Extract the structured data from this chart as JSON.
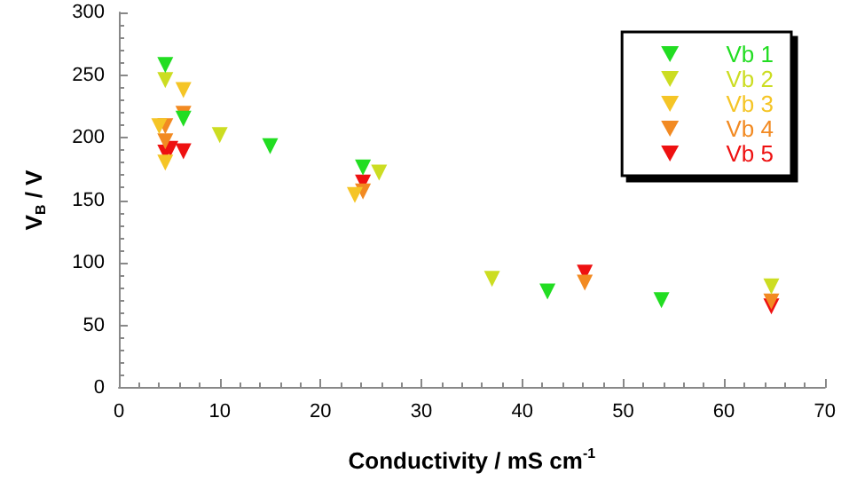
{
  "chart_data": {
    "type": "scatter",
    "xlabel": "Conductivity / mS cm$^{-1}$",
    "ylabel": "V$_{B}$ / V",
    "xlim": [
      0,
      70
    ],
    "xticks": [
      0,
      10,
      20,
      30,
      40,
      50,
      60,
      70
    ],
    "ylim": [
      0,
      300
    ],
    "yticks": [
      0,
      50,
      100,
      150,
      200,
      250,
      300
    ],
    "grid": false,
    "legend": "top right",
    "marker": "triangle",
    "series": [
      {
        "name": "Vb 1",
        "color": "#22dd22",
        "x": [
          4.6,
          6.4,
          15,
          24.2,
          42.5,
          53.8
        ],
        "values": [
          258,
          215,
          193,
          176,
          77,
          70
        ]
      },
      {
        "name": "Vb 2",
        "color": "#ccdd22",
        "x": [
          4.6,
          10,
          25.8,
          37,
          64.7
        ],
        "values": [
          246,
          202,
          172,
          87,
          81
        ]
      },
      {
        "name": "Vb 3",
        "color": "#f5c526",
        "x": [
          4,
          4.6,
          6.4,
          23.4
        ],
        "values": [
          209,
          180,
          238,
          154
        ]
      },
      {
        "name": "Vb 4",
        "color": "#f28a22",
        "x": [
          4.6,
          4.6,
          6.4,
          24.2,
          46.2,
          64.7
        ],
        "values": [
          209,
          197,
          219,
          157,
          84,
          69
        ]
      },
      {
        "name": "Vb 5",
        "color": "#ee1111",
        "x": [
          4.6,
          5.1,
          6.4,
          24.2,
          46.2,
          64.7
        ],
        "values": [
          188,
          191,
          189,
          164,
          92,
          65
        ]
      }
    ]
  }
}
